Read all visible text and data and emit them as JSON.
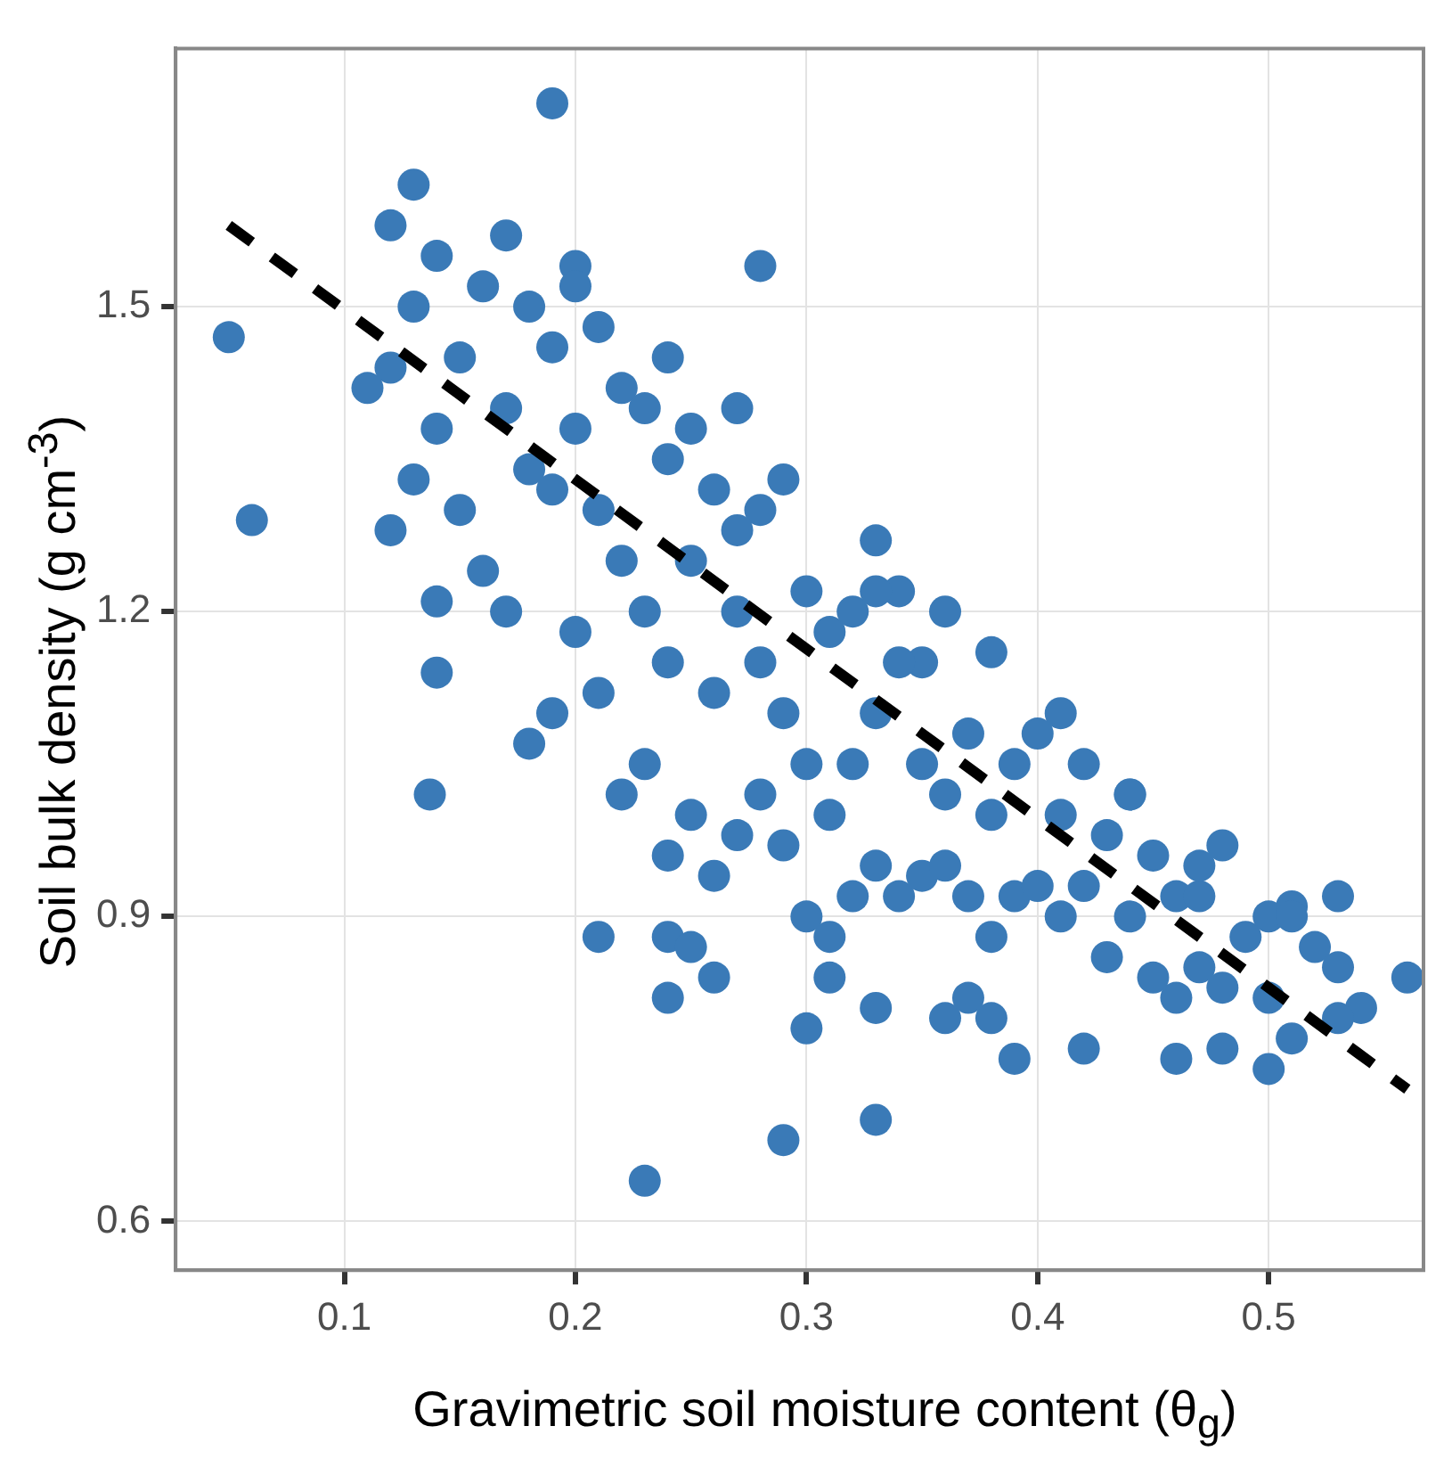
{
  "chart_data": {
    "type": "scatter",
    "xlabel": "Gravimetric soil moisture content (θ$_{g}$)",
    "ylabel": "Soil bulk density (g cm$^{-3}$)",
    "xlim": [
      0.027,
      0.567
    ],
    "ylim": [
      0.552,
      1.754
    ],
    "xticks": [
      0.1,
      0.2,
      0.3,
      0.4,
      0.5
    ],
    "yticks": [
      0.6,
      0.9,
      1.2,
      1.5
    ],
    "grid": true,
    "legend": false,
    "marker": "circle",
    "series": [
      {
        "color": "#3a7ab7",
        "x": [
          0.05,
          0.06,
          0.19,
          0.13,
          0.12,
          0.14,
          0.14,
          0.137,
          0.12,
          0.28,
          0.21,
          0.24,
          0.24,
          0.25,
          0.26,
          0.23,
          0.29,
          0.33,
          0.3,
          0.31,
          0.33,
          0.39,
          0.42,
          0.46,
          0.48,
          0.5,
          0.56,
          0.54,
          0.36,
          0.38,
          0.37,
          0.11,
          0.12,
          0.13,
          0.13,
          0.14,
          0.14,
          0.15,
          0.15,
          0.16,
          0.16,
          0.17,
          0.17,
          0.17,
          0.18,
          0.18,
          0.18,
          0.19,
          0.19,
          0.19,
          0.2,
          0.2,
          0.2,
          0.21,
          0.21,
          0.21,
          0.22,
          0.22,
          0.22,
          0.23,
          0.23,
          0.23,
          0.24,
          0.24,
          0.24,
          0.25,
          0.25,
          0.25,
          0.26,
          0.26,
          0.26,
          0.27,
          0.27,
          0.27,
          0.28,
          0.28,
          0.28,
          0.29,
          0.29,
          0.29,
          0.3,
          0.3,
          0.3,
          0.31,
          0.31,
          0.31,
          0.32,
          0.32,
          0.32,
          0.33,
          0.33,
          0.33,
          0.34,
          0.34,
          0.35,
          0.35,
          0.35,
          0.36,
          0.36,
          0.36,
          0.37,
          0.37,
          0.38,
          0.38,
          0.38,
          0.39,
          0.39,
          0.4,
          0.4,
          0.41,
          0.41,
          0.42,
          0.42,
          0.43,
          0.43,
          0.44,
          0.44,
          0.45,
          0.45,
          0.46,
          0.46,
          0.47,
          0.47,
          0.48,
          0.48,
          0.49,
          0.5,
          0.5,
          0.51,
          0.51,
          0.52,
          0.53,
          0.53,
          0.53,
          0.2,
          0.24,
          0.27,
          0.34,
          0.33,
          0.41,
          0.44,
          0.51,
          0.47
        ],
        "values": [
          1.47,
          1.29,
          1.7,
          1.62,
          1.58,
          1.21,
          1.14,
          1.02,
          1.28,
          1.54,
          0.88,
          0.88,
          0.82,
          0.87,
          0.84,
          0.64,
          0.68,
          0.7,
          0.79,
          0.84,
          0.81,
          0.76,
          0.77,
          0.76,
          0.77,
          0.75,
          0.84,
          0.81,
          0.8,
          0.8,
          0.82,
          1.42,
          1.44,
          1.5,
          1.33,
          1.38,
          1.55,
          1.3,
          1.45,
          1.24,
          1.52,
          1.2,
          1.4,
          1.57,
          1.07,
          1.34,
          1.5,
          1.1,
          1.32,
          1.46,
          1.18,
          1.38,
          1.54,
          1.12,
          1.3,
          1.48,
          1.02,
          1.25,
          1.42,
          1.05,
          1.2,
          1.4,
          0.96,
          1.15,
          1.45,
          1.0,
          1.25,
          1.38,
          0.94,
          1.12,
          1.32,
          0.98,
          1.2,
          1.4,
          1.02,
          1.15,
          1.3,
          0.97,
          1.1,
          1.33,
          0.9,
          1.05,
          1.22,
          0.88,
          1.0,
          1.18,
          0.92,
          1.05,
          1.2,
          0.95,
          1.1,
          1.27,
          0.92,
          1.22,
          0.94,
          1.05,
          1.15,
          0.95,
          1.02,
          1.2,
          0.92,
          1.08,
          0.88,
          1.0,
          1.16,
          0.92,
          1.05,
          0.93,
          1.08,
          0.9,
          1.0,
          0.93,
          1.05,
          0.86,
          0.98,
          0.9,
          1.02,
          0.84,
          0.96,
          0.82,
          0.92,
          0.85,
          0.92,
          0.83,
          0.97,
          0.88,
          0.82,
          0.9,
          0.78,
          0.91,
          0.87,
          0.8,
          0.85,
          0.92,
          1.52,
          1.35,
          1.28,
          1.15,
          1.22,
          1.1,
          1.02,
          0.9,
          0.95
        ]
      },
      {
        "type": "line",
        "color": "#000000",
        "line_style": "dashed",
        "marker": "none",
        "x": [
          0.05,
          0.56
        ],
        "values": [
          1.58,
          0.73
        ]
      }
    ]
  }
}
